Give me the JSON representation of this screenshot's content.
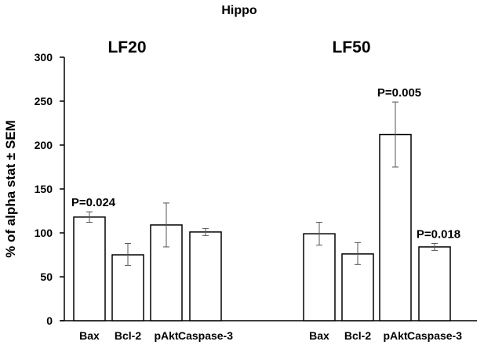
{
  "chart_data": {
    "type": "bar",
    "title": "Hippo",
    "xlabel": "",
    "ylabel": "% of alpha stat ± SEM",
    "ylim": [
      0,
      300
    ],
    "yticks": [
      0,
      50,
      100,
      150,
      200,
      250,
      300
    ],
    "grid": false,
    "groups": [
      {
        "name": "LF20",
        "bars": [
          {
            "category": "Bax",
            "value": 118,
            "err_low": 112,
            "err_high": 124,
            "annotation": "P=0.024"
          },
          {
            "category": "Bcl-2",
            "value": 75,
            "err_low": 63,
            "err_high": 88,
            "annotation": ""
          },
          {
            "category": "pAkt",
            "value": 109,
            "err_low": 84,
            "err_high": 134,
            "annotation": ""
          },
          {
            "category": "Caspase-3",
            "value": 101,
            "err_low": 97,
            "err_high": 105,
            "annotation": ""
          }
        ]
      },
      {
        "name": "LF50",
        "bars": [
          {
            "category": "Bax",
            "value": 99,
            "err_low": 86,
            "err_high": 112,
            "annotation": ""
          },
          {
            "category": "Bcl-2",
            "value": 76,
            "err_low": 64,
            "err_high": 89,
            "annotation": ""
          },
          {
            "category": "pAkt",
            "value": 212,
            "err_low": 175,
            "err_high": 249,
            "annotation": "P=0.005"
          },
          {
            "category": "Caspase-3",
            "value": 84,
            "err_low": 80,
            "err_high": 88,
            "annotation": "P=0.018"
          }
        ]
      }
    ]
  }
}
